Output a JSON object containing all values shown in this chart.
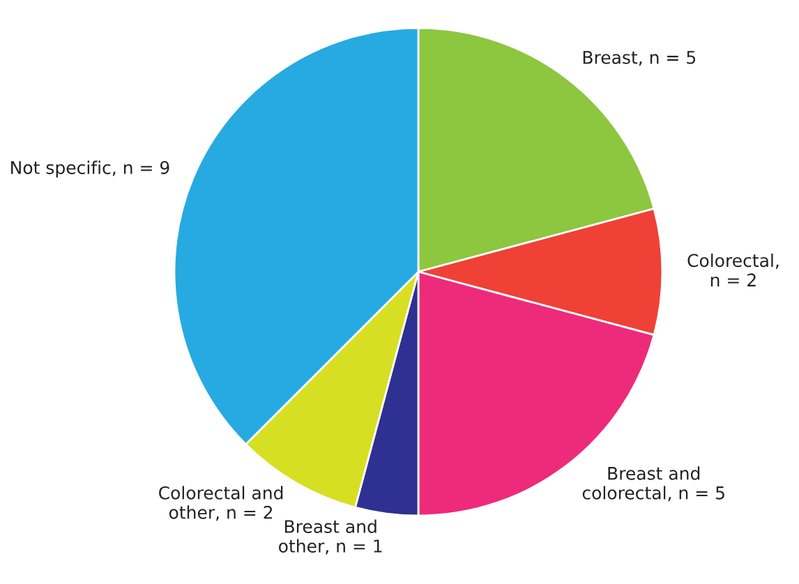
{
  "chart_data": {
    "type": "pie",
    "categories": [
      "Breast, n = 5",
      "Colorectal,\nn = 2",
      "Breast and\ncolorectal, n = 5",
      "Breast and\nother, n = 1",
      "Colorectal and\nother, n = 2",
      "Not specific, n = 9"
    ],
    "values": [
      5,
      2,
      5,
      1,
      2,
      9
    ],
    "colors": [
      "#8dc63f",
      "#ef4136",
      "#ee2a7b",
      "#2e3192",
      "#d7df23",
      "#27aae1"
    ]
  }
}
